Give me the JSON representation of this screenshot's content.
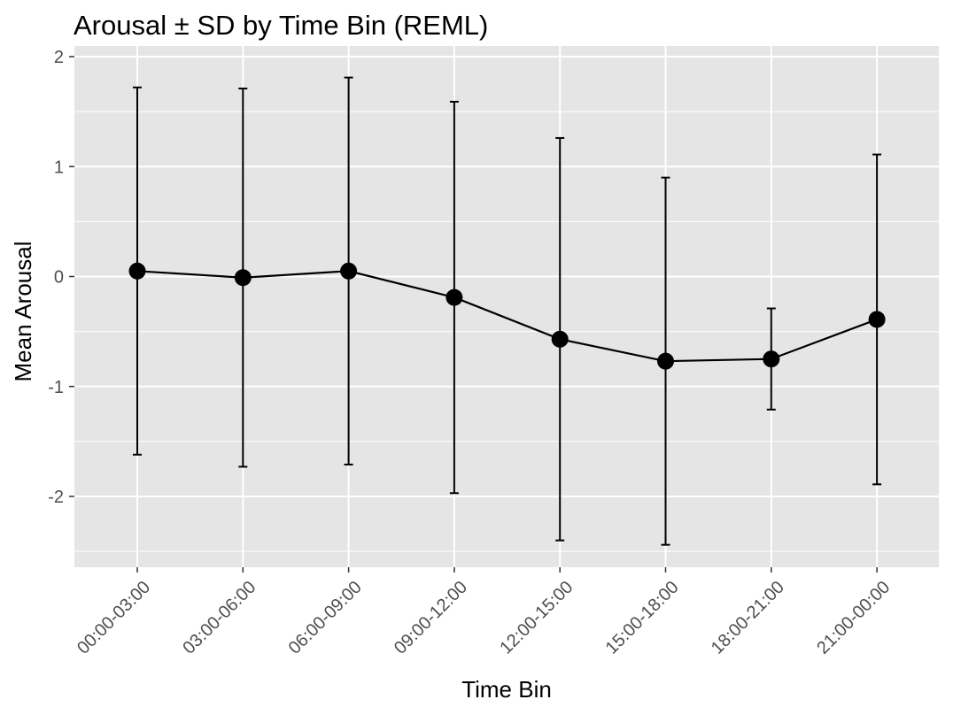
{
  "chart_data": {
    "type": "line",
    "title": "Arousal ± SD by Time Bin (REML)",
    "xlabel": "Time Bin",
    "ylabel": "Mean Arousal",
    "categories": [
      "00:00-03:00",
      "03:00-06:00",
      "06:00-09:00",
      "09:00-12:00",
      "12:00-15:00",
      "15:00-18:00",
      "18:00-21:00",
      "21:00-00:00"
    ],
    "series": [
      {
        "values": [
          0.05,
          -0.01,
          0.05,
          -0.19,
          -0.57,
          -0.77,
          -0.75,
          -0.39
        ],
        "lower": [
          -1.62,
          -1.73,
          -1.71,
          -1.97,
          -2.4,
          -2.44,
          -1.21,
          -1.89
        ],
        "upper": [
          1.72,
          1.71,
          1.81,
          1.59,
          1.26,
          0.9,
          -0.29,
          1.11
        ]
      }
    ],
    "yticks": [
      -2,
      -1,
      0,
      1,
      2
    ],
    "ylim": [
      -2.65,
      2.0
    ],
    "grid": true,
    "legend": "none",
    "colors": {
      "panel": "#e5e5e5",
      "grid": "#ffffff",
      "line": "#000000",
      "tick_text": "#4d4d4d"
    }
  }
}
